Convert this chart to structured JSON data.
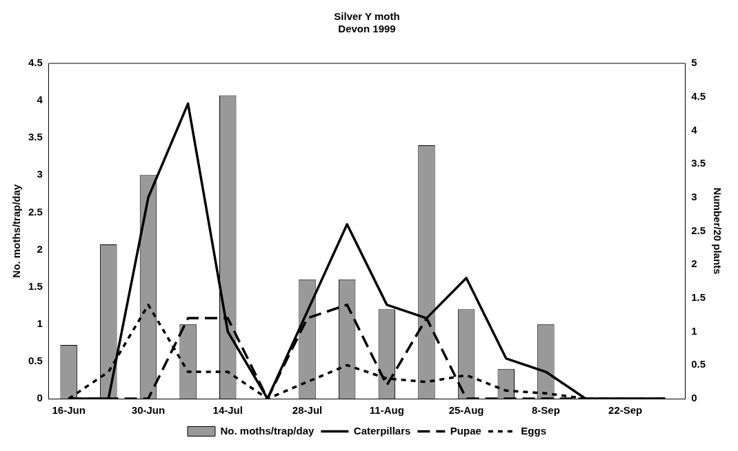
{
  "chart_data": {
    "type": "bar",
    "title": "Silver Y moth\nDevon 1999",
    "ylabel": "No. moths/trap/day",
    "y2label": "Number/20 plants",
    "categories": [
      "16-Jun",
      null,
      "30-Jun",
      null,
      "14-Jul",
      null,
      "28-Jul",
      null,
      "11-Aug",
      null,
      "25-Aug",
      null,
      "8-Sep",
      null,
      "22-Sep",
      null
    ],
    "series": [
      {
        "name": "No. moths/trap/day",
        "color": "#999999",
        "values": [
          0.72,
          2.07,
          3.0,
          1.0,
          4.07,
          null,
          1.6,
          1.6,
          1.2,
          3.4,
          1.2,
          0.4,
          1.0,
          null,
          null,
          null
        ]
      },
      {
        "name": "Caterpillars",
        "type": "line",
        "axis": "y2",
        "color": "#000000",
        "line_style": "solid",
        "values": [
          0,
          0,
          3.0,
          4.4,
          1.0,
          0,
          1.3,
          2.6,
          1.4,
          1.2,
          1.8,
          0.6,
          0.4,
          0,
          0,
          0
        ]
      },
      {
        "name": "Pupae",
        "type": "line",
        "axis": "y2",
        "color": "#000000",
        "line_style": "dashed",
        "values": [
          0,
          0,
          0,
          1.2,
          1.2,
          0,
          1.2,
          1.4,
          0.2,
          1.2,
          0,
          0,
          0,
          0,
          0,
          0
        ]
      },
      {
        "name": "Eggs",
        "type": "line",
        "axis": "y2",
        "color": "#000000",
        "line_style": "dotted",
        "values": [
          0,
          0.4,
          1.4,
          0.4,
          0.4,
          0,
          0.25,
          0.5,
          0.3,
          0.25,
          0.35,
          0.12,
          0.08,
          0,
          0,
          0
        ]
      }
    ],
    "ylim": [
      0,
      4.5
    ],
    "yticks": [
      0,
      0.5,
      1,
      1.5,
      2,
      2.5,
      3,
      3.5,
      4,
      4.5
    ],
    "y2lim": [
      0,
      5
    ],
    "y2ticks": [
      0,
      0.5,
      1,
      1.5,
      2,
      2.5,
      3,
      3.5,
      4,
      4.5,
      5
    ],
    "grid": false,
    "legend": "bottom",
    "marker": "none"
  }
}
